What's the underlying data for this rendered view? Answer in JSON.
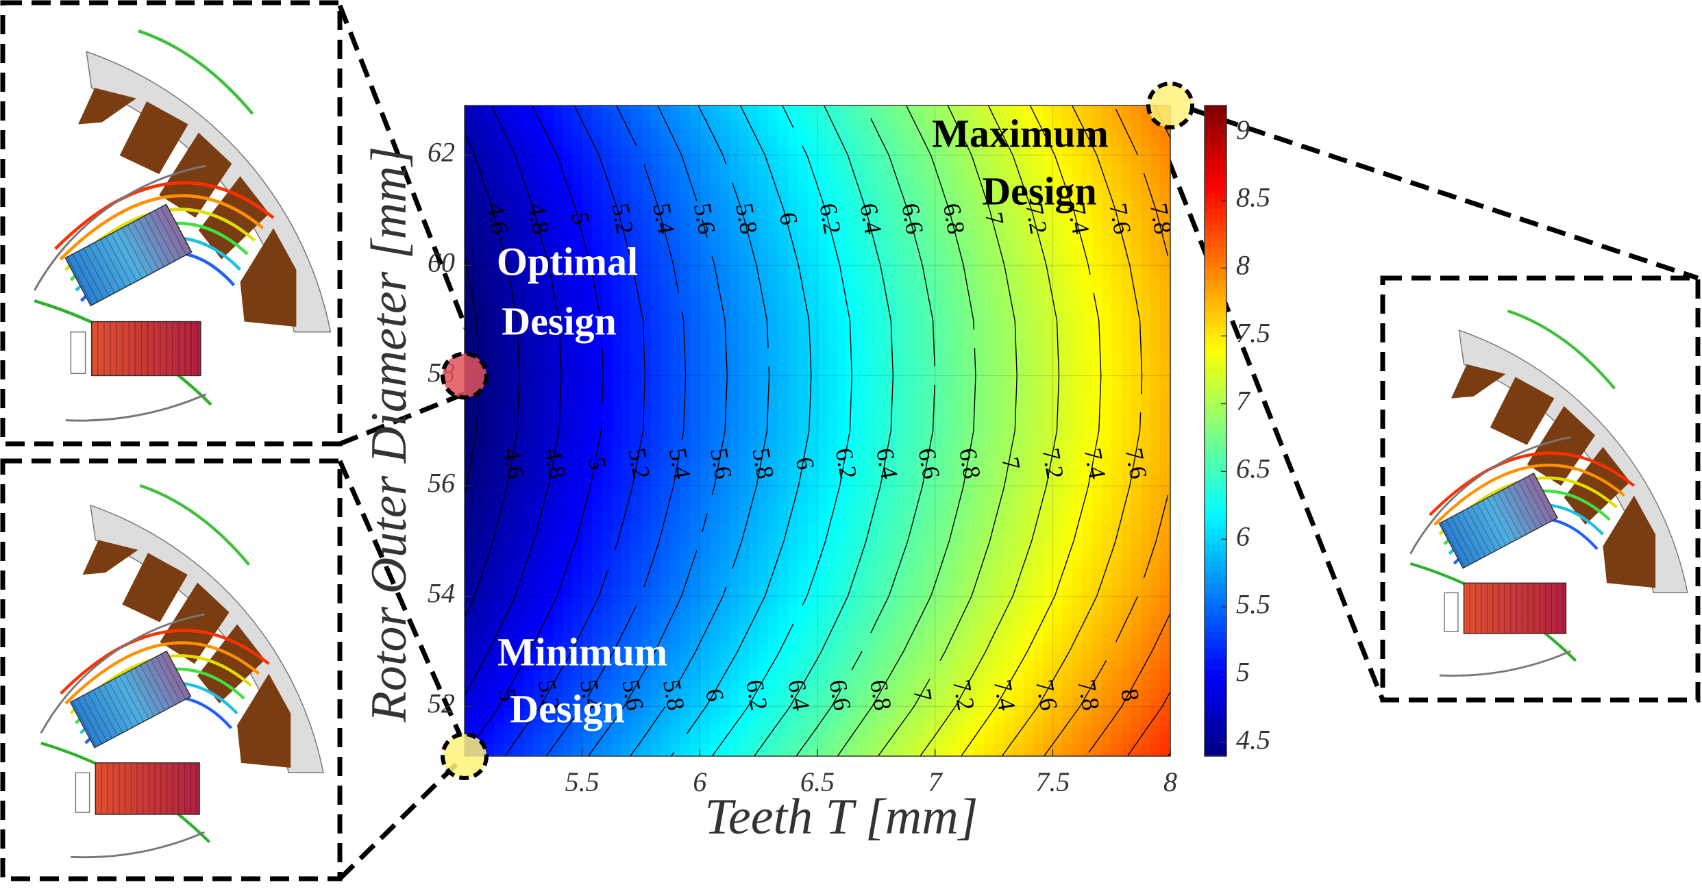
{
  "chart_data": {
    "type": "contour",
    "x_label": "Teeth T [mm]",
    "y_label": "Rotor Outer Diameter [mm]",
    "x": [
      5,
      5.25,
      5.5,
      5.75,
      6,
      6.25,
      6.5,
      6.75,
      7,
      7.25,
      7.5,
      7.75,
      8
    ],
    "y": [
      51,
      52,
      53,
      54,
      55,
      56,
      57,
      58,
      59,
      60,
      61,
      62,
      63
    ],
    "z": [
      [
        5.02,
        5.31,
        5.59,
        5.87,
        6.16,
        6.44,
        6.72,
        7.01,
        7.29,
        7.58,
        7.86,
        8.14,
        8.43
      ],
      [
        4.83,
        5.12,
        5.4,
        5.68,
        5.97,
        6.25,
        6.53,
        6.82,
        7.1,
        7.39,
        7.67,
        7.95,
        8.24
      ],
      [
        4.68,
        4.97,
        5.25,
        5.53,
        5.82,
        6.1,
        6.38,
        6.67,
        6.95,
        7.24,
        7.52,
        7.8,
        8.09
      ],
      [
        4.55,
        4.84,
        5.12,
        5.4,
        5.69,
        5.97,
        6.25,
        6.54,
        6.82,
        7.11,
        7.39,
        7.67,
        7.96
      ],
      [
        4.46,
        4.75,
        5.03,
        5.31,
        5.6,
        5.88,
        6.16,
        6.45,
        6.73,
        7.02,
        7.3,
        7.58,
        7.87
      ],
      [
        4.39,
        4.68,
        4.96,
        5.24,
        5.53,
        5.81,
        6.09,
        6.38,
        6.66,
        6.95,
        7.23,
        7.51,
        7.8
      ],
      [
        4.34,
        4.63,
        4.91,
        5.19,
        5.48,
        5.76,
        6.04,
        6.33,
        6.61,
        6.9,
        7.18,
        7.46,
        7.75
      ],
      [
        4.33,
        4.62,
        4.9,
        5.18,
        5.47,
        5.75,
        6.03,
        6.32,
        6.6,
        6.89,
        7.17,
        7.45,
        7.74
      ],
      [
        4.34,
        4.63,
        4.91,
        5.19,
        5.48,
        5.76,
        6.04,
        6.33,
        6.61,
        6.9,
        7.18,
        7.46,
        7.75
      ],
      [
        4.39,
        4.68,
        4.96,
        5.24,
        5.53,
        5.81,
        6.09,
        6.38,
        6.66,
        6.95,
        7.23,
        7.51,
        7.8
      ],
      [
        4.46,
        4.75,
        5.03,
        5.31,
        5.6,
        5.88,
        6.16,
        6.45,
        6.73,
        7.02,
        7.3,
        7.58,
        7.87
      ],
      [
        4.55,
        4.84,
        5.12,
        5.4,
        5.69,
        5.97,
        6.25,
        6.54,
        6.82,
        7.11,
        7.39,
        7.67,
        7.96
      ],
      [
        4.68,
        4.97,
        5.25,
        5.53,
        5.82,
        6.1,
        6.38,
        6.67,
        6.95,
        7.24,
        7.52,
        7.8,
        8.09
      ]
    ],
    "xlim": [
      5,
      8
    ],
    "ylim": [
      51.1,
      62.9
    ],
    "xticks": [
      5.5,
      6,
      6.5,
      7,
      7.5,
      8
    ],
    "yticks": [
      52,
      54,
      56,
      58,
      60,
      62
    ],
    "grid": true,
    "colormap": "jet",
    "levels": [
      4.4,
      4.6,
      4.8,
      5,
      5.2,
      5.4,
      5.6,
      5.8,
      6,
      6.2,
      6.4,
      6.6,
      6.8,
      7,
      7.2,
      7.4,
      7.6,
      7.8,
      8,
      8.2,
      8.4
    ],
    "clim": [
      4.4,
      9.2
    ],
    "cbticks": [
      4.5,
      5,
      5.5,
      6,
      6.5,
      7,
      7.5,
      8,
      8.5,
      9
    ],
    "annotations": [
      {
        "text": [
          "Optimal",
          "Design"
        ],
        "x": 5,
        "y": 58,
        "color": "#e0525a"
      },
      {
        "text": [
          "Maximum",
          "Design"
        ],
        "x": 8,
        "y": 62.9,
        "color": "#fff27a"
      },
      {
        "text": [
          "Minimum",
          "Design"
        ],
        "x": 5,
        "y": 51.1,
        "color": "#fff27a"
      }
    ]
  }
}
